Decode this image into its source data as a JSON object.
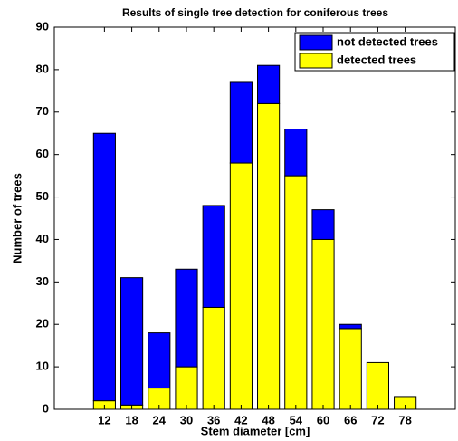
{
  "chart_data": {
    "type": "bar",
    "stacked": true,
    "title": "Results of single tree detection for coniferous trees",
    "x_label": "Stem diameter [cm]",
    "y_label": "Number of trees",
    "x": [
      12,
      18,
      24,
      30,
      36,
      42,
      48,
      54,
      60,
      66,
      72,
      78
    ],
    "series": [
      {
        "name": "detected trees",
        "color": "#ffff00",
        "values": [
          2,
          1,
          5,
          10,
          24,
          58,
          72,
          55,
          40,
          19,
          11,
          3
        ]
      },
      {
        "name": "not detected trees",
        "color": "#0000ff",
        "values": [
          63,
          30,
          13,
          23,
          24,
          19,
          9,
          11,
          7,
          1,
          0,
          0
        ]
      }
    ],
    "xlim": [
      1,
      89
    ],
    "xticks": [
      12,
      18,
      24,
      30,
      36,
      42,
      48,
      54,
      60,
      66,
      72,
      78
    ],
    "ylim": [
      0,
      90
    ],
    "yticks": [
      0,
      10,
      20,
      30,
      40,
      50,
      60,
      70,
      80,
      90
    ],
    "legend": "upper right"
  }
}
